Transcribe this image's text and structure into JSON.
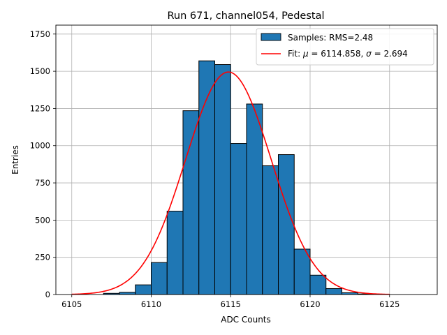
{
  "chart_data": {
    "type": "bar",
    "title": "Run 671, channel054, Pedestal",
    "xlabel": "ADC Counts",
    "ylabel": "Entries",
    "xlim": [
      6104,
      6128
    ],
    "ylim": [
      0,
      1810
    ],
    "xticks": [
      6105,
      6110,
      6115,
      6120,
      6125
    ],
    "yticks": [
      0,
      250,
      500,
      750,
      1000,
      1250,
      1500,
      1750
    ],
    "grid": true,
    "legend_position": "top-right",
    "bin_width": 1,
    "histogram": {
      "name": "Samples: RMS=2.48",
      "color": "#1f77b4",
      "edge_color": "#000000",
      "bin_edges": [
        6107,
        6108,
        6109,
        6110,
        6111,
        6112,
        6113,
        6114,
        6115,
        6116,
        6117,
        6118,
        6119,
        6120,
        6121,
        6122,
        6123
      ],
      "counts": [
        8,
        15,
        65,
        215,
        560,
        1235,
        1570,
        1545,
        1015,
        1280,
        865,
        940,
        305,
        130,
        40,
        12,
        4
      ]
    },
    "fit": {
      "name_prefix": "Fit: ",
      "name_mu": "μ",
      "mu_value": " = 6114.858, ",
      "name_sigma": "σ",
      "sigma_value": " = 2.694",
      "color": "#ff0000",
      "mu": 6114.858,
      "sigma": 2.694,
      "amplitude": 1495,
      "range": [
        6105,
        6125
      ]
    }
  }
}
